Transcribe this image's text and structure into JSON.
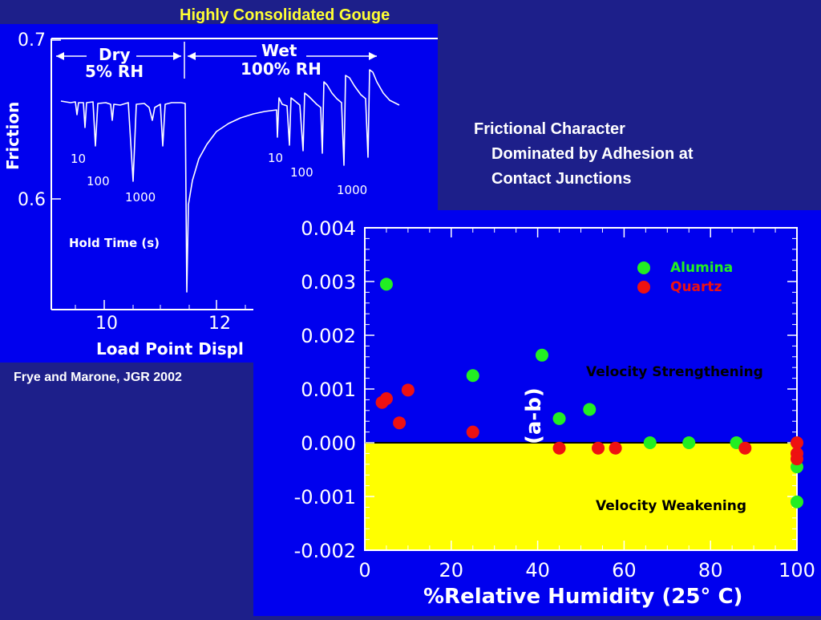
{
  "slide": {
    "title": "Highly Consolidated Gouge",
    "citation": "Frye and Marone, JGR 2002",
    "note_lines": [
      "Frictional Character",
      "Dominated by Adhesion at",
      "Contact Junctions"
    ]
  },
  "colors": {
    "background": "#1d1f8a",
    "panel": "#0000ee",
    "title": "#ffff33",
    "alumina": "#22ee22",
    "quartz": "#ee1111",
    "weakening_region": "#ffff00"
  },
  "chart_data": [
    {
      "type": "line",
      "title": "",
      "xlabel": "Load Point Displ",
      "ylabel": "Friction",
      "yticks": [
        "0.7",
        "0.6"
      ],
      "xticks": [
        "10",
        "12"
      ],
      "x_range": [
        9.1,
        13.7
      ],
      "y_range": [
        0.53,
        0.7
      ],
      "region_labels": [
        {
          "line1": "Dry",
          "line2": "5% RH"
        },
        {
          "line1": "Wet",
          "line2": "100% RH"
        }
      ],
      "hold_time_labels": {
        "dry": [
          "10",
          "100",
          "1000"
        ],
        "wet": [
          "10",
          "100",
          "1000"
        ],
        "caption": "Hold Time (s)"
      }
    },
    {
      "type": "scatter",
      "title": "",
      "xlabel": "%Relative Humidity (25° C)",
      "ylabel": "(a-b)",
      "xlim": [
        0,
        100
      ],
      "ylim": [
        -0.002,
        0.004
      ],
      "xticks": [
        "0",
        "20",
        "40",
        "60",
        "80",
        "100"
      ],
      "yticks": [
        "0.004",
        "0.003",
        "0.002",
        "0.001",
        "0.000",
        "-0.001",
        "-0.002"
      ],
      "legend_position": "top-right",
      "region_labels": [
        "Velocity Strengthening",
        "Velocity Weakening"
      ],
      "series": [
        {
          "name": "Alumina",
          "color": "#22ee22",
          "points": [
            [
              5,
              0.00295
            ],
            [
              25,
              0.00125
            ],
            [
              41,
              0.00163
            ],
            [
              45,
              0.00045
            ],
            [
              52,
              0.00062
            ],
            [
              66,
              0.0
            ],
            [
              75,
              0.0
            ],
            [
              86,
              0.0
            ],
            [
              100,
              -0.00045
            ],
            [
              100,
              -0.0011
            ]
          ]
        },
        {
          "name": "Quartz",
          "color": "#ee1111",
          "points": [
            [
              4,
              0.00075
            ],
            [
              5,
              0.00082
            ],
            [
              8,
              0.00037
            ],
            [
              10,
              0.00098
            ],
            [
              25,
              0.0002
            ],
            [
              45,
              -0.0001
            ],
            [
              54,
              -0.0001
            ],
            [
              58,
              -0.0001
            ],
            [
              88,
              -0.0001
            ],
            [
              100,
              0.0
            ],
            [
              100,
              -0.0002
            ],
            [
              100,
              -0.0003
            ]
          ]
        }
      ]
    }
  ]
}
